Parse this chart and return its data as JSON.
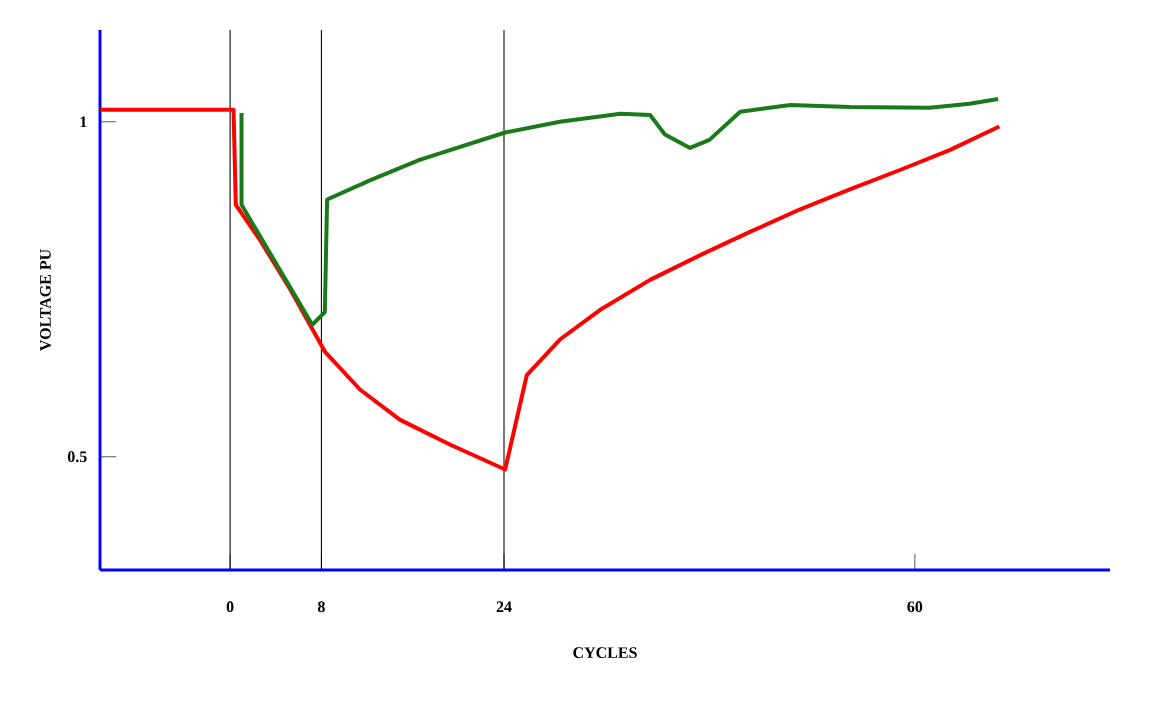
{
  "chart_data": {
    "type": "line",
    "xlabel": "CYCLES",
    "ylabel": "VOLTAGE PU",
    "xlim": [
      -11.4,
      77.1
    ],
    "ylim": [
      0.331,
      1.137
    ],
    "xticks": [
      0,
      8,
      24,
      60
    ],
    "yticks": [
      0.5,
      1
    ],
    "grid": false,
    "marker": "none",
    "line_style": "solid",
    "ref_lines": [
      {
        "axis": "x",
        "value": 0,
        "color": "#000000"
      },
      {
        "axis": "x",
        "value": 8,
        "color": "#000000"
      },
      {
        "axis": "x",
        "value": 24,
        "color": "#000000"
      }
    ],
    "series": [
      {
        "color": "#ff0000",
        "x": [
          -11.4,
          0.3,
          0.5,
          2.6,
          5.3,
          8.3,
          11.4,
          14.9,
          19.3,
          24.1,
          26.0,
          28.9,
          32.4,
          36.8,
          41.2,
          45.6,
          49.9,
          54.3,
          58.7,
          63.1,
          67.4
        ],
        "values": [
          1.018,
          1.018,
          0.876,
          0.824,
          0.749,
          0.657,
          0.6,
          0.555,
          0.518,
          0.481,
          0.622,
          0.675,
          0.719,
          0.764,
          0.801,
          0.836,
          0.869,
          0.899,
          0.928,
          0.958,
          0.993
        ]
      },
      {
        "color": "#1a7a1a",
        "x": [
          1.0,
          1.0,
          7.2,
          8.3,
          8.5,
          12.3,
          16.6,
          24.1,
          28.9,
          34.2,
          36.8,
          38.1,
          40.3,
          42.0,
          44.7,
          49.1,
          54.3,
          61.3,
          64.8,
          67.3
        ],
        "values": [
          1.013,
          0.876,
          0.697,
          0.716,
          0.884,
          0.913,
          0.943,
          0.984,
          1.0,
          1.012,
          1.01,
          0.981,
          0.961,
          0.973,
          1.015,
          1.025,
          1.022,
          1.021,
          1.027,
          1.034
        ]
      }
    ]
  }
}
